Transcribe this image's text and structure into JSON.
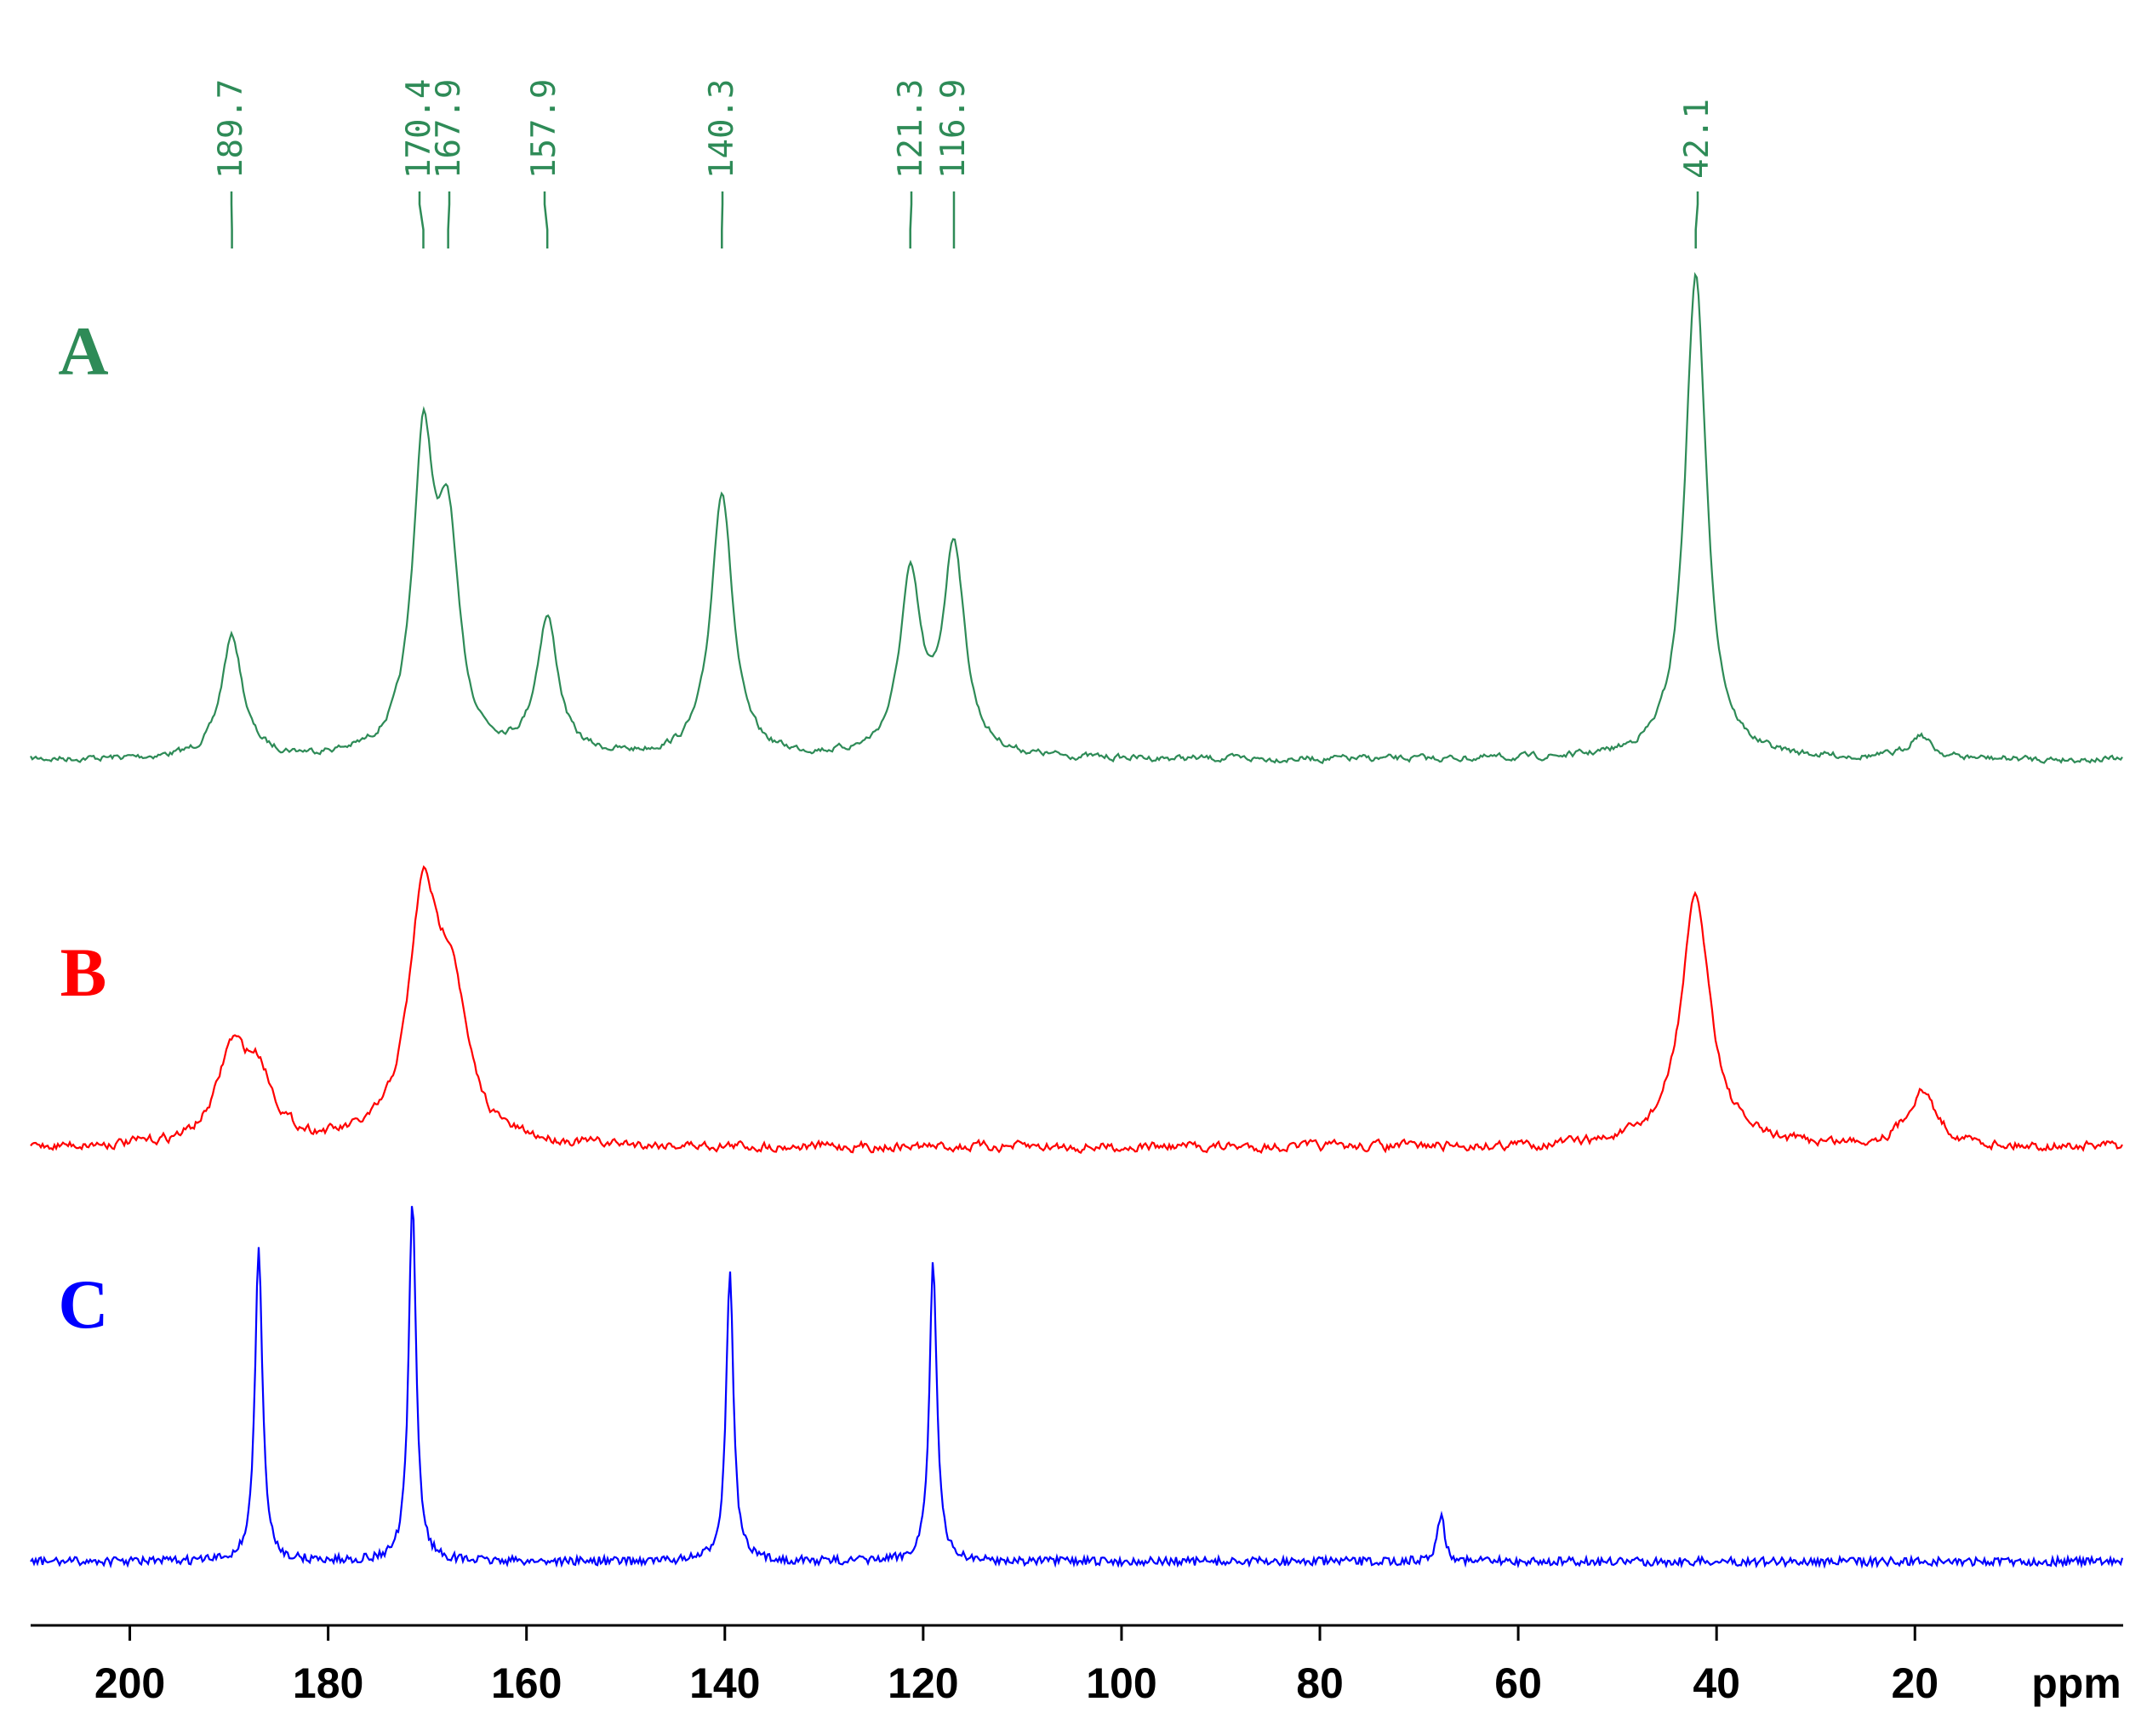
{
  "chart_data": {
    "type": "line",
    "xlabel": "ppm",
    "xlim": [
      210,
      -1
    ],
    "x_reversed": true,
    "x_ticks": [
      200,
      180,
      160,
      140,
      120,
      100,
      80,
      60,
      40,
      20
    ],
    "peak_labels": [
      "189.7",
      "170.4",
      "167.9",
      "157.9",
      "140.3",
      "121.3",
      "116.9",
      "42.1"
    ],
    "series": [
      {
        "name": "A",
        "color": "#2e8b57",
        "peaks": [
          {
            "ppm": 189.7,
            "height": 0.25
          },
          {
            "ppm": 170.4,
            "height": 0.62
          },
          {
            "ppm": 167.9,
            "height": 0.42
          },
          {
            "ppm": 157.9,
            "height": 0.28
          },
          {
            "ppm": 140.3,
            "height": 0.55
          },
          {
            "ppm": 121.3,
            "height": 0.36
          },
          {
            "ppm": 116.9,
            "height": 0.43
          },
          {
            "ppm": 42.1,
            "height": 1.0
          },
          {
            "ppm": 19.5,
            "height": 0.05
          }
        ]
      },
      {
        "name": "B",
        "color": "#ff0000",
        "peaks": [
          {
            "ppm": 189.7,
            "height": 0.35
          },
          {
            "ppm": 187.0,
            "height": 0.25
          },
          {
            "ppm": 170.4,
            "height": 0.95
          },
          {
            "ppm": 167.5,
            "height": 0.55
          },
          {
            "ppm": 42.1,
            "height": 1.0
          },
          {
            "ppm": 19.3,
            "height": 0.22
          }
        ]
      },
      {
        "name": "C",
        "color": "#0000ff",
        "peaks": [
          {
            "ppm": 187.0,
            "height": 0.87
          },
          {
            "ppm": 171.5,
            "height": 1.0
          },
          {
            "ppm": 139.5,
            "height": 0.8
          },
          {
            "ppm": 119.0,
            "height": 0.83
          },
          {
            "ppm": 67.8,
            "height": 0.13
          }
        ]
      }
    ]
  }
}
